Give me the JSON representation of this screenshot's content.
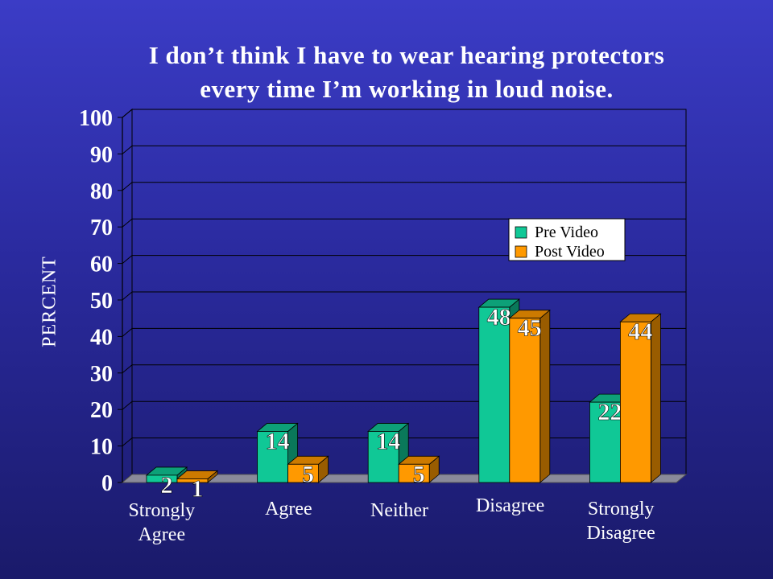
{
  "chart_data": {
    "type": "bar",
    "title": [
      "I don’t think I have to wear hearing protectors",
      "every time I’m working in loud noise."
    ],
    "ylabel": "PERCENT",
    "xlabel": "",
    "ylim": [
      0,
      100
    ],
    "yticks": [
      0,
      10,
      20,
      30,
      40,
      50,
      60,
      70,
      80,
      90,
      100
    ],
    "grid": true,
    "legend_position": "right",
    "categories": [
      "Strongly\nAgree",
      "Agree",
      "Neither",
      "Disagree",
      "Strongly\nDisagree"
    ],
    "series": [
      {
        "name": "Pre Video",
        "values": [
          2,
          14,
          14,
          48,
          22
        ],
        "color": "#10c896"
      },
      {
        "name": "Post Video",
        "values": [
          1,
          5,
          5,
          45,
          44
        ],
        "color": "#ff9900"
      }
    ]
  }
}
